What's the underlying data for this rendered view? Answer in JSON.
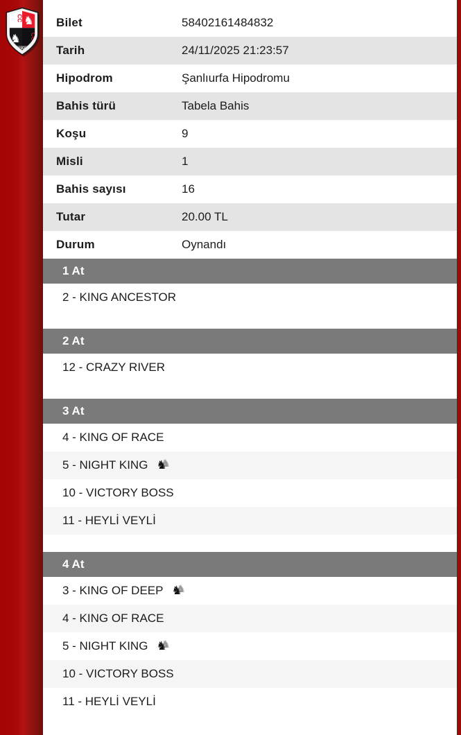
{
  "logo": {
    "monogram": "CC",
    "year": "1950"
  },
  "icons": {
    "horse_glyph": "♞"
  },
  "ticket": {
    "rows": [
      {
        "label": "Bilet",
        "value": "58402161484832"
      },
      {
        "label": "Tarih",
        "value": "24/11/2025 21:23:57"
      },
      {
        "label": "Hipodrom",
        "value": "Şanlıurfa Hipodromu"
      },
      {
        "label": "Bahis türü",
        "value": "Tabela Bahis"
      },
      {
        "label": "Koşu",
        "value": "9"
      },
      {
        "label": "Misli",
        "value": "1"
      },
      {
        "label": "Bahis sayısı",
        "value": "16"
      },
      {
        "label": "Tutar",
        "value": "20.00 TL"
      },
      {
        "label": "Durum",
        "value": "Oynandı"
      }
    ]
  },
  "legs": [
    {
      "title": "1 At",
      "horses": [
        {
          "name": "2 - KING ANCESTOR",
          "stablemate": false
        }
      ]
    },
    {
      "title": "2 At",
      "horses": [
        {
          "name": "12 - CRAZY RIVER",
          "stablemate": false
        }
      ]
    },
    {
      "title": "3 At",
      "horses": [
        {
          "name": "4 - KING OF RACE",
          "stablemate": false
        },
        {
          "name": "5 - NIGHT KING",
          "stablemate": true
        },
        {
          "name": "10 - VICTORY BOSS",
          "stablemate": false
        },
        {
          "name": "11 - HEYLİ VEYLİ",
          "stablemate": false
        }
      ]
    },
    {
      "title": "4 At",
      "horses": [
        {
          "name": "3 - KING OF DEEP",
          "stablemate": true
        },
        {
          "name": "4 - KING OF RACE",
          "stablemate": false
        },
        {
          "name": "5 - NIGHT KING",
          "stablemate": true
        },
        {
          "name": "10 - VICTORY BOSS",
          "stablemate": false
        },
        {
          "name": "11 - HEYLİ VEYLİ",
          "stablemate": false
        }
      ]
    }
  ],
  "colors": {
    "sidebar_red": "#a90808",
    "edge_red": "#9e0a0a",
    "logo_red": "#e81c2a",
    "header_gray": "#7a7a7a",
    "row_alt_gray": "#e4e4e4",
    "horse_alt_gray": "#f5f5f5",
    "text": "#1c1c1c"
  }
}
